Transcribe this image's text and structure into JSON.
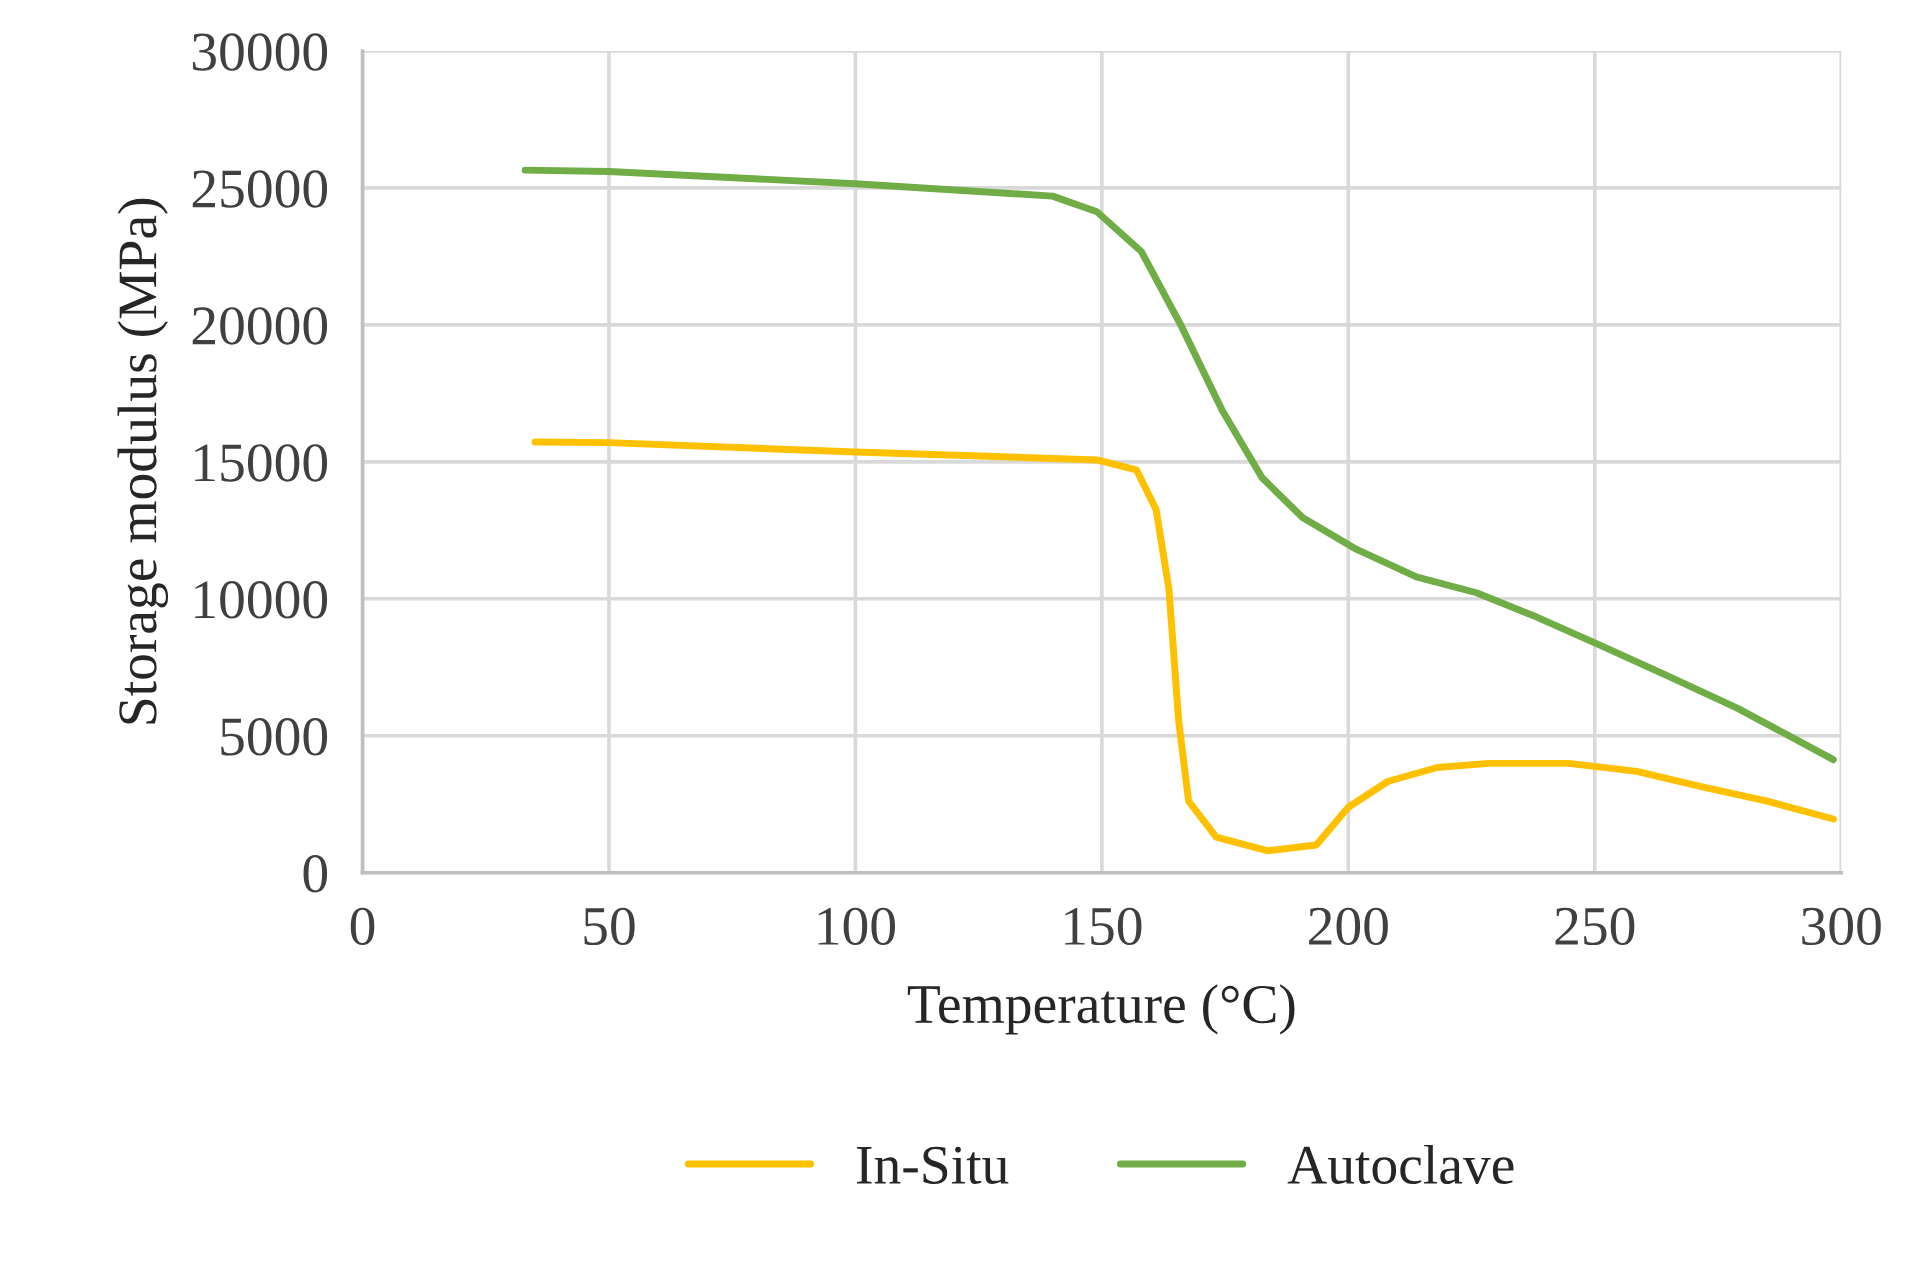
{
  "chart_data": {
    "type": "line",
    "xlabel": "Temperature (°C)",
    "ylabel": "Storage modulus (MPa)",
    "xlim": [
      0,
      300
    ],
    "xticks": [
      0,
      50,
      100,
      150,
      200,
      250,
      300
    ],
    "ylim": [
      0,
      30000
    ],
    "yticks": [
      0,
      5000,
      10000,
      15000,
      20000,
      25000,
      30000
    ],
    "grid": true,
    "legend": "bottom",
    "marker": "none",
    "line_style": "solid",
    "series": [
      {
        "name": "In-Situ",
        "color": "#ffc000",
        "x": [
          35,
          50,
          100,
          149,
          157,
          161,
          163.6,
          165.6,
          167.6,
          173.2,
          183.7,
          193.5,
          200,
          208,
          218,
          228.5,
          244.7,
          258.5,
          272,
          285,
          298.4
        ],
        "values": [
          15725,
          15700,
          15360,
          15070,
          14710,
          13260,
          10360,
          5510,
          2610,
          1300,
          800,
          1010,
          2390,
          3330,
          3840,
          3990,
          3990,
          3700,
          3120,
          2610,
          1960
        ]
      },
      {
        "name": "Autoclave",
        "color": "#70ad47",
        "x": [
          33,
          50,
          100,
          140,
          149,
          158,
          166,
          174.4,
          182.5,
          190.7,
          201.6,
          213.8,
          226,
          238,
          251.6,
          265,
          278.9,
          298.4
        ],
        "values": [
          25650,
          25600,
          25150,
          24700,
          24130,
          22680,
          20000,
          16880,
          14420,
          12970,
          11810,
          10800,
          10220,
          9350,
          8260,
          7170,
          6010,
          4130
        ]
      }
    ]
  }
}
